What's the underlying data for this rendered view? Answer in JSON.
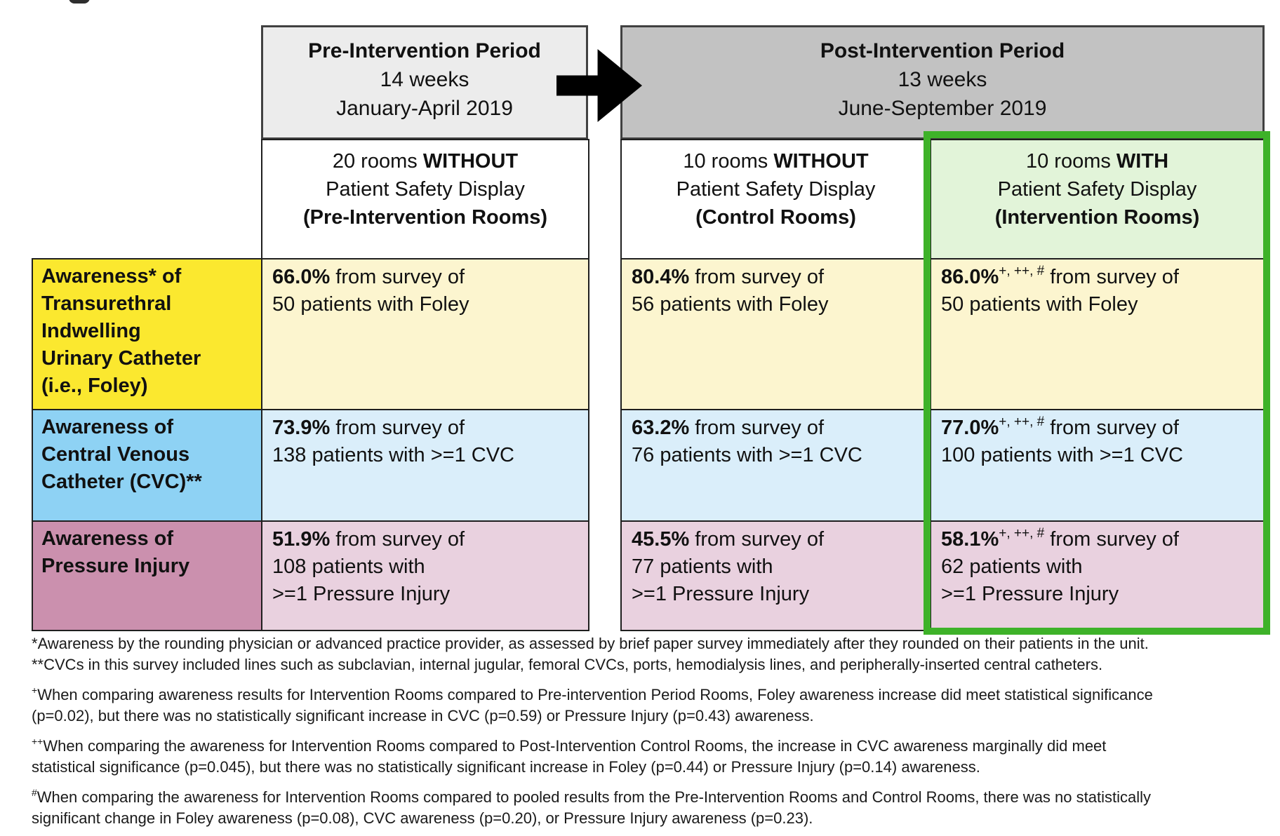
{
  "period_boxes": {
    "pre": {
      "title": "Pre-Intervention Period",
      "duration": "14 weeks",
      "dates": "January-April 2019"
    },
    "post": {
      "title": "Post-Intervention Period",
      "duration": "13 weeks",
      "dates": "June-September 2019"
    }
  },
  "columns": [
    {
      "prefix": "20 rooms ",
      "emphasis": "WITHOUT",
      "line2": "Patient Safety Display",
      "room_label": "(Pre-Intervention Rooms)"
    },
    {
      "prefix": "10 rooms ",
      "emphasis": "WITHOUT",
      "line2": "Patient Safety Display",
      "room_label": "(Control Rooms)"
    },
    {
      "prefix": "10 rooms ",
      "emphasis": "WITH",
      "line2": "Patient Safety Display",
      "room_label": "(Intervention Rooms)"
    }
  ],
  "rows": [
    {
      "label": "Awareness* of\nTransurethral\nIndwelling\nUrinary Catheter\n(i.e., Foley)",
      "cells": [
        {
          "value": "66.0%",
          "sup": "",
          "rest": " from survey of\n50 patients with Foley"
        },
        {
          "value": "80.4%",
          "sup": "",
          "rest": " from survey of\n56 patients with Foley"
        },
        {
          "value": "86.0%",
          "sup": "+, ++, #",
          "rest": " from survey of\n50 patients with Foley"
        }
      ]
    },
    {
      "label": "Awareness of\nCentral Venous\nCatheter (CVC)**",
      "cells": [
        {
          "value": "73.9%",
          "sup": "",
          "rest": " from survey of\n138 patients with >=1 CVC"
        },
        {
          "value": "63.2%",
          "sup": "",
          "rest": " from survey of\n76 patients with >=1 CVC"
        },
        {
          "value": "77.0%",
          "sup": "+, ++, #",
          "rest": " from survey of\n100 patients with >=1 CVC"
        }
      ]
    },
    {
      "label": "Awareness of\nPressure Injury",
      "cells": [
        {
          "value": "51.9%",
          "sup": "",
          "rest": " from survey of\n108 patients with\n>=1 Pressure Injury"
        },
        {
          "value": "45.5%",
          "sup": "",
          "rest": " from survey of\n77 patients with\n>=1 Pressure Injury"
        },
        {
          "value": "58.1%",
          "sup": "+, ++, #",
          "rest": " from survey of\n62 patients with\n>=1 Pressure Injury"
        }
      ]
    }
  ],
  "footnotes": [
    {
      "marker": "*",
      "text": "Awareness by the rounding physician or advanced practice provider, as assessed by brief paper survey immediately after they rounded on their patients in the unit."
    },
    {
      "marker": "**",
      "text": "CVCs in this survey included lines such as subclavian, internal jugular, femoral CVCs, ports, hemodialysis lines, and peripherally-inserted central catheters."
    },
    {
      "marker": "+",
      "text": "When comparing awareness results for Intervention Rooms compared to Pre-intervention Period Rooms, Foley awareness increase did meet statistical significance\n(p=0.02), but there was no statistically significant increase in CVC (p=0.59) or Pressure Injury (p=0.43) awareness."
    },
    {
      "marker": "++",
      "text": "When comparing the awareness for Intervention Rooms compared to Post-Intervention Control Rooms, the increase in CVC awareness marginally did meet\nstatistical significance (p=0.045), but there was no statistically significant increase in Foley (p=0.44) or Pressure Injury (p=0.14) awareness."
    },
    {
      "marker": "#",
      "text": "When comparing the awareness for Intervention Rooms compared to pooled results from the Pre-Intervention Rooms and Control Rooms, there was no statistically\nsignificant change in Foley awareness (p=0.08), CVC awareness (p=0.20), or Pressure Injury awareness (p=0.23)."
    }
  ],
  "colors": {
    "pre_period_bg": "#ececec",
    "post_period_bg": "#c2c2c2",
    "foley_label_bg": "#fbe82f",
    "foley_cell_bg": "#fcf5cf",
    "cvc_label_bg": "#8ed2f4",
    "cvc_cell_bg": "#daeefa",
    "pressure_label_bg": "#cb90ae",
    "pressure_cell_bg": "#e9d1df",
    "intervention_header_bg": "#e2f4d9",
    "intervention_highlight_border": "#3eb229",
    "arrow": "#000000"
  }
}
